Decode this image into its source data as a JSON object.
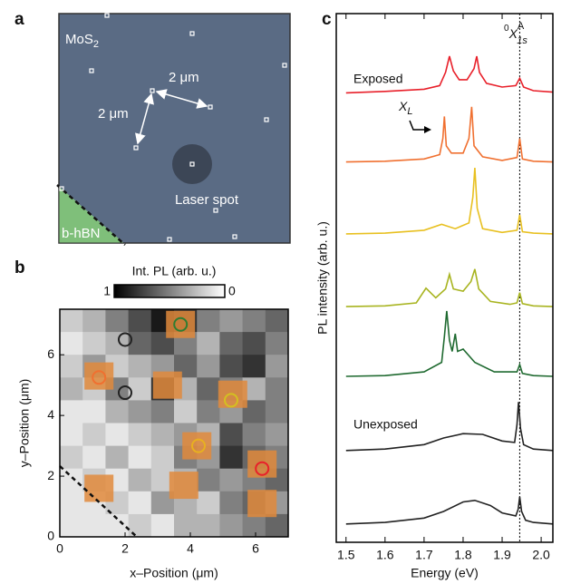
{
  "schematic": {
    "panel_label": "a",
    "material": {
      "main": "MoS",
      "sub": "2"
    },
    "scale_labels": [
      "2 μm",
      "2 μm"
    ],
    "laser_label": "Laser spot",
    "substrate_label": "b-hBN"
  },
  "chart_data": [
    {
      "type": "heatmap",
      "panel_label": "b",
      "colorbar_label": "Int. PL (arb. u.)",
      "colorbar_ticks": [
        1,
        0
      ],
      "xlabel": "x–Position (μm)",
      "ylabel": "y–Position (μm)",
      "xlim": [
        0,
        7
      ],
      "ylim": [
        0,
        7.5
      ],
      "xticks": [
        0,
        2,
        4,
        6
      ],
      "yticks": [
        0,
        2,
        4,
        6
      ],
      "values": [
        [
          0.2,
          0.3,
          0.5,
          0.7,
          0.9,
          0.8,
          0.5,
          0.4,
          0.5,
          0.6
        ],
        [
          0.1,
          0.2,
          0.3,
          0.6,
          0.7,
          0.5,
          0.3,
          0.6,
          0.7,
          0.5
        ],
        [
          0.2,
          0.4,
          0.2,
          0.3,
          0.4,
          0.6,
          0.4,
          0.7,
          0.8,
          0.4
        ],
        [
          0.3,
          0.2,
          0.5,
          0.2,
          0.8,
          0.3,
          0.6,
          0.5,
          0.3,
          0.5
        ],
        [
          0.1,
          0.1,
          0.3,
          0.4,
          0.5,
          0.2,
          0.5,
          0.4,
          0.6,
          0.5
        ],
        [
          0.1,
          0.2,
          0.1,
          0.2,
          0.3,
          0.4,
          0.3,
          0.7,
          0.5,
          0.4
        ],
        [
          0.2,
          0.1,
          0.3,
          0.1,
          0.2,
          0.5,
          0.4,
          0.8,
          0.6,
          0.5
        ],
        [
          0.1,
          0.2,
          0.1,
          0.3,
          0.2,
          0.3,
          0.5,
          0.4,
          0.5,
          0.6
        ],
        [
          0.1,
          0.1,
          0.2,
          0.1,
          0.4,
          0.3,
          0.2,
          0.5,
          0.6,
          0.4
        ],
        [
          0.1,
          0.1,
          0.1,
          0.2,
          0.1,
          0.3,
          0.3,
          0.4,
          0.5,
          0.6
        ]
      ],
      "emitter_color": "#e08a3c",
      "emitters": [
        {
          "x": 1.2,
          "y": 5.3
        },
        {
          "x": 3.7,
          "y": 7.0
        },
        {
          "x": 3.3,
          "y": 5.0
        },
        {
          "x": 5.3,
          "y": 4.7
        },
        {
          "x": 6.2,
          "y": 2.4
        },
        {
          "x": 4.2,
          "y": 3.0
        },
        {
          "x": 1.2,
          "y": 1.6
        },
        {
          "x": 3.8,
          "y": 1.7
        },
        {
          "x": 6.2,
          "y": 1.1
        }
      ],
      "circles": [
        {
          "x": 2.0,
          "y": 6.5,
          "color": "#222222"
        },
        {
          "x": 2.0,
          "y": 4.75,
          "color": "#222222"
        },
        {
          "x": 3.7,
          "y": 7.0,
          "color": "#2e7d32"
        },
        {
          "x": 1.2,
          "y": 5.25,
          "color": "#f07030"
        },
        {
          "x": 5.25,
          "y": 4.5,
          "color": "#d4c020"
        },
        {
          "x": 4.25,
          "y": 3.0,
          "color": "#e8b020"
        },
        {
          "x": 6.2,
          "y": 2.25,
          "color": "#e8202a"
        }
      ]
    },
    {
      "type": "line",
      "panel_label": "c",
      "xlabel": "Energy (eV)",
      "ylabel": "PL intensity (arb. u.)",
      "xlim": [
        1.475,
        2.03
      ],
      "ylim": [
        0,
        7.2
      ],
      "xticks": [
        1.5,
        1.6,
        1.7,
        1.8,
        1.9,
        {
          "value": 2.0,
          "label": "2.0"
        }
      ],
      "reference_line": 1.945,
      "reference_label": {
        "pre": "0",
        "main": "X",
        "sup": "A",
        "sub": "1s"
      },
      "peak_label": {
        "main": "X",
        "sub": "L"
      },
      "annotations": [
        "Exposed",
        "Unexposed"
      ],
      "series": [
        {
          "color": "#e8202a",
          "x": [
            1.5,
            1.6,
            1.7,
            1.74,
            1.755,
            1.765,
            1.775,
            1.79,
            1.81,
            1.828,
            1.835,
            1.842,
            1.86,
            1.9,
            1.935,
            1.945,
            1.955,
            1.98,
            2.03
          ],
          "values": [
            6.12,
            6.14,
            6.17,
            6.22,
            6.4,
            6.62,
            6.42,
            6.3,
            6.3,
            6.45,
            6.62,
            6.4,
            6.25,
            6.2,
            6.22,
            6.32,
            6.2,
            6.15,
            6.13
          ]
        },
        {
          "color": "#f07030",
          "x": [
            1.5,
            1.6,
            1.7,
            1.74,
            1.748,
            1.752,
            1.757,
            1.77,
            1.8,
            1.815,
            1.822,
            1.828,
            1.85,
            1.9,
            1.938,
            1.945,
            1.952,
            1.98,
            2.03
          ],
          "values": [
            5.18,
            5.19,
            5.22,
            5.28,
            5.5,
            5.8,
            5.4,
            5.3,
            5.3,
            5.5,
            5.93,
            5.4,
            5.25,
            5.2,
            5.24,
            5.5,
            5.22,
            5.19,
            5.18
          ]
        },
        {
          "color": "#e8c020",
          "x": [
            1.5,
            1.6,
            1.7,
            1.745,
            1.78,
            1.815,
            1.825,
            1.83,
            1.836,
            1.85,
            1.9,
            1.938,
            1.945,
            1.952,
            1.98,
            2.03
          ],
          "values": [
            4.2,
            4.21,
            4.25,
            4.33,
            4.27,
            4.35,
            4.7,
            5.1,
            4.55,
            4.27,
            4.22,
            4.25,
            4.46,
            4.23,
            4.21,
            4.2
          ]
        },
        {
          "color": "#a8b420",
          "x": [
            1.5,
            1.6,
            1.68,
            1.705,
            1.73,
            1.755,
            1.765,
            1.775,
            1.8,
            1.82,
            1.83,
            1.84,
            1.87,
            1.92,
            1.938,
            1.945,
            1.952,
            1.98,
            2.03
          ],
          "values": [
            3.21,
            3.22,
            3.26,
            3.46,
            3.33,
            3.45,
            3.65,
            3.45,
            3.42,
            3.55,
            3.72,
            3.45,
            3.28,
            3.24,
            3.26,
            3.4,
            3.25,
            3.22,
            3.21
          ]
        },
        {
          "color": "#1f6a30",
          "x": [
            1.5,
            1.6,
            1.7,
            1.745,
            1.752,
            1.758,
            1.765,
            1.772,
            1.78,
            1.786,
            1.8,
            1.83,
            1.88,
            1.938,
            1.945,
            1.952,
            1.98,
            2.03
          ],
          "values": [
            2.26,
            2.27,
            2.32,
            2.45,
            2.8,
            3.15,
            2.75,
            2.6,
            2.84,
            2.6,
            2.63,
            2.45,
            2.32,
            2.32,
            2.42,
            2.3,
            2.27,
            2.26
          ]
        },
        {
          "color": "#222222",
          "x": [
            1.5,
            1.6,
            1.7,
            1.75,
            1.8,
            1.85,
            1.9,
            1.932,
            1.938,
            1.942,
            1.947,
            1.955,
            1.98,
            2.03
          ],
          "values": [
            1.25,
            1.27,
            1.33,
            1.42,
            1.48,
            1.47,
            1.38,
            1.36,
            1.6,
            1.91,
            1.55,
            1.33,
            1.27,
            1.25
          ]
        },
        {
          "color": "#222222",
          "x": [
            1.5,
            1.6,
            1.7,
            1.75,
            1.8,
            1.83,
            1.87,
            1.9,
            1.935,
            1.941,
            1.945,
            1.95,
            1.96,
            1.98,
            2.03
          ],
          "values": [
            0.25,
            0.27,
            0.33,
            0.42,
            0.55,
            0.57,
            0.5,
            0.4,
            0.36,
            0.45,
            0.62,
            0.42,
            0.3,
            0.27,
            0.25
          ]
        }
      ]
    }
  ]
}
